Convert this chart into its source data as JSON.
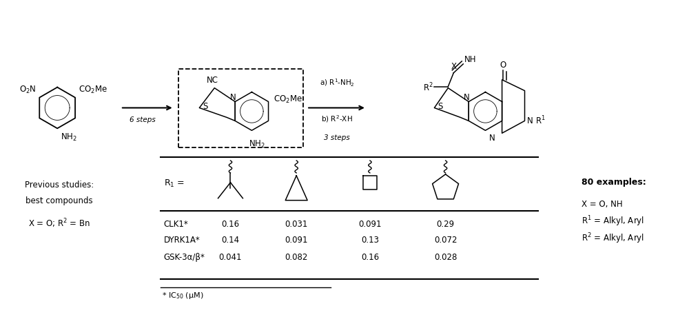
{
  "fig_width": 10.0,
  "fig_height": 4.77,
  "dpi": 100,
  "bg_color": "#ffffff",
  "bottom_section": {
    "left_label_line1": "Previous studies:",
    "left_label_line2": "best compounds",
    "left_label_line3": "X = O; R² = Bn",
    "table_rows": [
      [
        "CLK1*",
        "0.16",
        "0.031",
        "0.091",
        "0.29"
      ],
      [
        "DYRK1A*",
        "0.14",
        "0.091",
        "0.13",
        "0.072"
      ],
      [
        "GSK-3α/β*",
        "0.041",
        "0.082",
        "0.16",
        "0.028"
      ]
    ],
    "footnote": "* IC₅₀ (μM)",
    "right_label_line1": "80 examples:",
    "right_label_line2": "X = O, NH",
    "right_label_line3": "R¹ = Alkyl, Aryl",
    "right_label_line4": "R² = Alkyl, Aryl"
  }
}
